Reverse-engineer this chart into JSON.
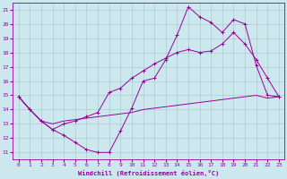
{
  "xlabel": "Windchill (Refroidissement éolien,°C)",
  "bg_color": "#cce8ee",
  "grid_color": "#aacccc",
  "line_color": "#990099",
  "x_ticks": [
    0,
    1,
    2,
    3,
    4,
    5,
    6,
    7,
    8,
    9,
    10,
    11,
    12,
    13,
    14,
    15,
    16,
    17,
    18,
    19,
    20,
    21,
    22,
    23
  ],
  "y_ticks": [
    11,
    12,
    13,
    14,
    15,
    16,
    17,
    18,
    19,
    20,
    21
  ],
  "xlim": [
    -0.5,
    23.5
  ],
  "ylim": [
    10.5,
    21.5
  ],
  "line1_x": [
    0,
    1,
    2,
    3,
    4,
    5,
    6,
    7,
    8,
    9,
    10,
    11,
    12,
    13,
    14,
    15,
    16,
    17,
    18,
    19,
    20,
    21,
    22,
    23
  ],
  "line1_y": [
    14.9,
    14.0,
    13.2,
    12.6,
    12.2,
    11.7,
    11.2,
    11.0,
    11.0,
    12.5,
    14.1,
    16.0,
    16.2,
    17.5,
    19.2,
    21.2,
    20.5,
    20.1,
    19.4,
    20.3,
    20.0,
    17.1,
    15.0,
    14.9
  ],
  "line2_x": [
    0,
    1,
    2,
    3,
    4,
    5,
    6,
    7,
    8,
    9,
    10,
    11,
    12,
    13,
    14,
    15,
    16,
    17,
    18,
    19,
    20,
    21,
    22,
    23
  ],
  "line2_y": [
    14.9,
    14.0,
    13.2,
    13.0,
    13.2,
    13.3,
    13.4,
    13.5,
    13.6,
    13.7,
    13.8,
    14.0,
    14.1,
    14.2,
    14.3,
    14.4,
    14.5,
    14.6,
    14.7,
    14.8,
    14.9,
    15.0,
    14.8,
    14.9
  ],
  "line3_x": [
    0,
    1,
    2,
    3,
    4,
    5,
    6,
    7,
    8,
    9,
    10,
    11,
    12,
    13,
    14,
    15,
    16,
    17,
    18,
    19,
    20,
    21,
    22,
    23
  ],
  "line3_y": [
    14.9,
    14.0,
    13.2,
    12.6,
    13.0,
    13.2,
    13.5,
    13.8,
    15.2,
    15.5,
    16.2,
    16.7,
    17.2,
    17.6,
    18.0,
    18.2,
    18.0,
    18.1,
    18.6,
    19.4,
    18.6,
    17.5,
    16.2,
    14.9
  ]
}
